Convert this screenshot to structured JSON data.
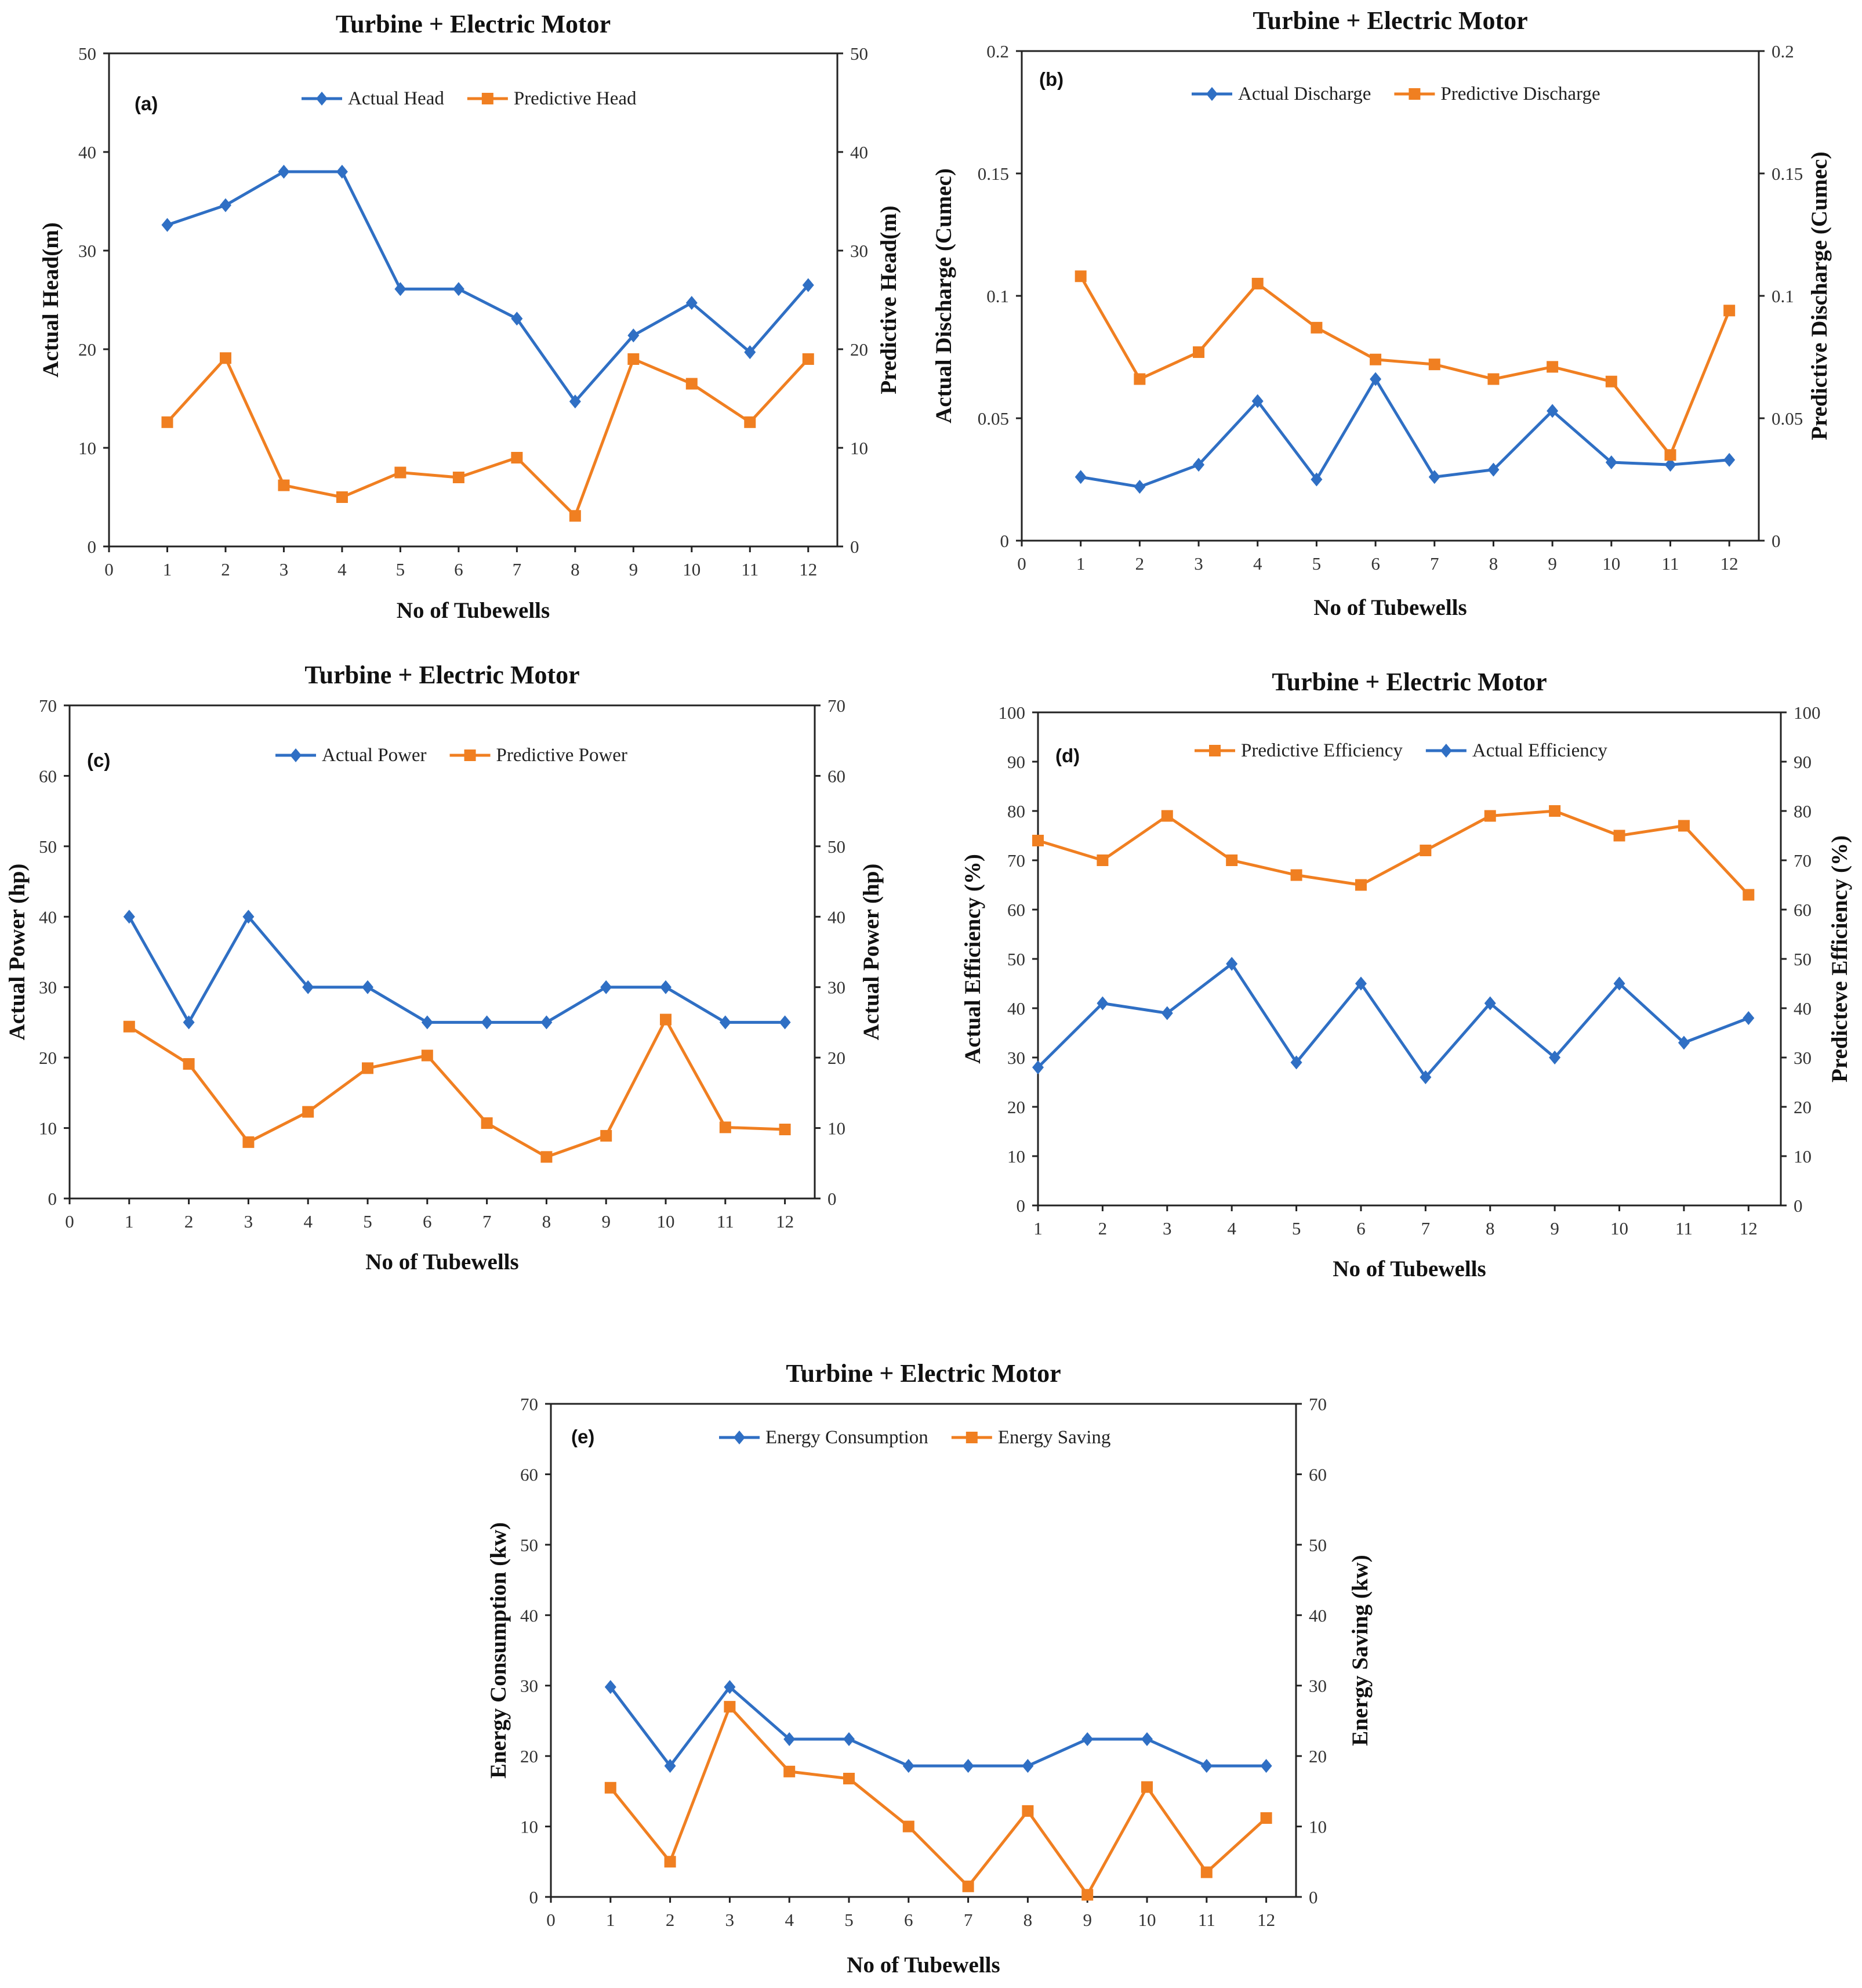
{
  "chart_data": [
    {
      "type": "line",
      "panel": "(a)",
      "title": "Turbine + Electric Motor",
      "xlabel": "No of Tubewells",
      "ylabel": "Actual Head(m)",
      "ylabel_right": "Predictive Head(m)",
      "xlim": [
        0,
        12.5
      ],
      "xticks": [
        0,
        1,
        2,
        3,
        4,
        5,
        6,
        7,
        8,
        9,
        10,
        11,
        12
      ],
      "ylim": [
        0,
        50
      ],
      "yticks": [
        0,
        10,
        20,
        30,
        40,
        50
      ],
      "legend_position": "top-center",
      "x": [
        1,
        2,
        3,
        4,
        5,
        6,
        7,
        8,
        9,
        10,
        11,
        12
      ],
      "series": [
        {
          "name": "Actual Head",
          "marker": "diamond",
          "color": "#2f6fc4",
          "values": [
            32.6,
            34.6,
            38.0,
            38.0,
            26.1,
            26.1,
            23.1,
            14.7,
            21.4,
            24.7,
            19.7,
            26.5
          ]
        },
        {
          "name": "Predictive Head",
          "marker": "square",
          "color": "#f07f21",
          "values": [
            12.6,
            19.1,
            6.2,
            5.0,
            7.5,
            7.0,
            9.0,
            3.1,
            19.0,
            16.5,
            12.6,
            19.0
          ]
        }
      ]
    },
    {
      "type": "line",
      "panel": "(b)",
      "title": "Turbine + Electric Motor",
      "xlabel": "No of Tubewells",
      "ylabel": "Actual Discharge (Cumec)",
      "ylabel_right": "Predictive Discharge (Cumec)",
      "xlim": [
        0,
        12.5
      ],
      "xticks": [
        0,
        1,
        2,
        3,
        4,
        5,
        6,
        7,
        8,
        9,
        10,
        11,
        12
      ],
      "ylim": [
        0,
        0.2
      ],
      "yticks": [
        0,
        0.05,
        0.1,
        0.15,
        0.2
      ],
      "legend_position": "top-center",
      "x": [
        1,
        2,
        3,
        4,
        5,
        6,
        7,
        8,
        9,
        10,
        11,
        12
      ],
      "series": [
        {
          "name": "Actual Discharge",
          "marker": "diamond",
          "color": "#2f6fc4",
          "values": [
            0.026,
            0.022,
            0.031,
            0.057,
            0.025,
            0.066,
            0.026,
            0.029,
            0.053,
            0.032,
            0.031,
            0.033
          ]
        },
        {
          "name": "Predictive Discharge",
          "marker": "square",
          "color": "#f07f21",
          "values": [
            0.108,
            0.066,
            0.077,
            0.105,
            0.087,
            0.074,
            0.072,
            0.066,
            0.071,
            0.065,
            0.035,
            0.094
          ]
        }
      ]
    },
    {
      "type": "line",
      "panel": "(c)",
      "title": "Turbine + Electric Motor",
      "xlabel": "No of Tubewells",
      "ylabel": "Actual Power (hp)",
      "ylabel_right": "Actual Power (hp)",
      "xlim": [
        0,
        12.5
      ],
      "xticks": [
        0,
        1,
        2,
        3,
        4,
        5,
        6,
        7,
        8,
        9,
        10,
        11,
        12
      ],
      "ylim": [
        0,
        70
      ],
      "yticks": [
        0,
        10,
        20,
        30,
        40,
        50,
        60,
        70
      ],
      "legend_position": "top-center",
      "x": [
        1,
        2,
        3,
        4,
        5,
        6,
        7,
        8,
        9,
        10,
        11,
        12
      ],
      "series": [
        {
          "name": "Actual Power",
          "marker": "diamond",
          "color": "#2f6fc4",
          "values": [
            40,
            25,
            40,
            30,
            30,
            25,
            25,
            25,
            30,
            30,
            25,
            25
          ]
        },
        {
          "name": "Predictive Power",
          "marker": "square",
          "color": "#f07f21",
          "values": [
            24.4,
            19.1,
            8.0,
            12.3,
            18.5,
            20.3,
            10.7,
            5.9,
            8.9,
            25.4,
            10.1,
            9.8
          ]
        }
      ]
    },
    {
      "type": "line",
      "panel": "(d)",
      "title": "Turbine + Electric Motor",
      "xlabel": "No of Tubewells",
      "ylabel": "Actual Efficiency (%)",
      "ylabel_right": "Predicteve Efficiency (%)",
      "xlim": [
        1,
        12.5
      ],
      "xticks": [
        1,
        2,
        3,
        4,
        5,
        6,
        7,
        8,
        9,
        10,
        11,
        12
      ],
      "ylim": [
        0,
        100
      ],
      "yticks": [
        0,
        10,
        20,
        30,
        40,
        50,
        60,
        70,
        80,
        90,
        100
      ],
      "legend_position": "top-center",
      "x": [
        1,
        2,
        3,
        4,
        5,
        6,
        7,
        8,
        9,
        10,
        11,
        12
      ],
      "series": [
        {
          "name": "Predictive Efficiency",
          "marker": "square",
          "color": "#f07f21",
          "values": [
            74,
            70,
            79,
            70,
            67,
            65,
            72,
            79,
            80,
            75,
            77,
            63
          ]
        },
        {
          "name": "Actual Efficiency",
          "marker": "diamond",
          "color": "#2f6fc4",
          "values": [
            28,
            41,
            39,
            49,
            29,
            45,
            26,
            41,
            30,
            45,
            33,
            38
          ]
        }
      ]
    },
    {
      "type": "line",
      "panel": "(e)",
      "title": "Turbine + Electric Motor",
      "xlabel": "No of Tubewells",
      "ylabel": "Energy Consumption (kw)",
      "ylabel_right": "Energy Saving (kw)",
      "xlim": [
        0,
        12.5
      ],
      "xticks": [
        0,
        1,
        2,
        3,
        4,
        5,
        6,
        7,
        8,
        9,
        10,
        11,
        12
      ],
      "ylim": [
        0,
        70
      ],
      "yticks": [
        0,
        10,
        20,
        30,
        40,
        50,
        60,
        70
      ],
      "legend_position": "top-center",
      "x": [
        1,
        2,
        3,
        4,
        5,
        6,
        7,
        8,
        9,
        10,
        11,
        12
      ],
      "series": [
        {
          "name": "Energy Consumption",
          "marker": "diamond",
          "color": "#2f6fc4",
          "values": [
            29.8,
            18.6,
            29.8,
            22.4,
            22.4,
            18.6,
            18.6,
            18.6,
            22.4,
            22.4,
            18.6,
            18.6
          ]
        },
        {
          "name": "Energy Saving",
          "marker": "square",
          "color": "#f07f21",
          "values": [
            15.5,
            5.0,
            27.0,
            17.8,
            16.8,
            10.0,
            1.5,
            12.2,
            0.3,
            15.6,
            3.5,
            11.2
          ]
        }
      ]
    }
  ]
}
